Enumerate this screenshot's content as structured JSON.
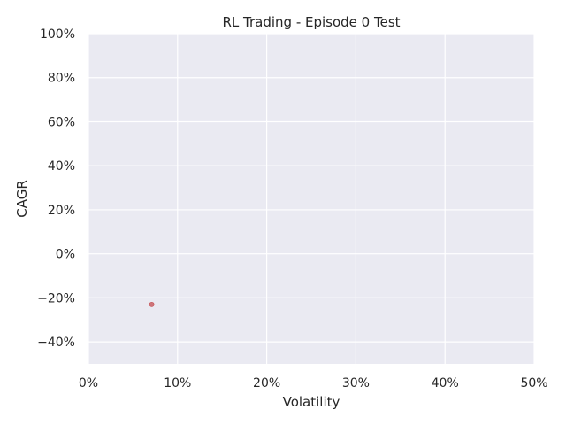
{
  "chart_data": {
    "type": "scatter",
    "title": "RL Trading - Episode 0 Test",
    "xlabel": "Volatility",
    "ylabel": "CAGR",
    "xlim": [
      0,
      0.5
    ],
    "ylim": [
      -0.5,
      1.0
    ],
    "xticks": [
      0,
      0.1,
      0.2,
      0.3,
      0.4,
      0.5
    ],
    "xtick_labels": [
      "0%",
      "10%",
      "20%",
      "30%",
      "40%",
      "50%"
    ],
    "yticks": [
      -0.4,
      -0.2,
      0,
      0.2,
      0.4,
      0.6,
      0.8,
      1.0
    ],
    "ytick_labels": [
      "−40%",
      "−20%",
      "0%",
      "20%",
      "40%",
      "60%",
      "80%",
      "100%"
    ],
    "grid": true,
    "series": [
      {
        "color": "#c44e52",
        "x": [
          0.071
        ],
        "y": [
          -0.23
        ]
      }
    ],
    "colors": {
      "plot_background": "#eaeaf2",
      "grid": "#ffffff",
      "point": "#c44e52"
    }
  }
}
